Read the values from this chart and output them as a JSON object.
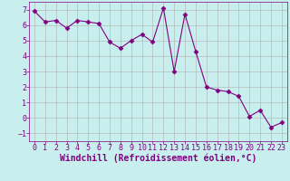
{
  "x": [
    0,
    1,
    2,
    3,
    4,
    5,
    6,
    7,
    8,
    9,
    10,
    11,
    12,
    13,
    14,
    15,
    16,
    17,
    18,
    19,
    20,
    21,
    22,
    23
  ],
  "y": [
    6.9,
    6.2,
    6.3,
    5.8,
    6.3,
    6.2,
    6.1,
    4.9,
    4.5,
    5.0,
    5.4,
    4.9,
    7.1,
    3.0,
    6.7,
    4.3,
    2.0,
    1.8,
    1.7,
    1.4,
    0.1,
    0.5,
    -0.6,
    -0.3
  ],
  "line_color": "#800080",
  "marker": "D",
  "marker_size": 2.5,
  "bg_color": "#c8eeee",
  "grid_color": "#b0b0b0",
  "xlabel": "Windchill (Refroidissement éolien,°C)",
  "xlabel_fontsize": 7,
  "tick_fontsize": 6,
  "ylim": [
    -1.5,
    7.5
  ],
  "xlim": [
    -0.5,
    23.5
  ],
  "yticks": [
    -1,
    0,
    1,
    2,
    3,
    4,
    5,
    6,
    7
  ],
  "xticks": [
    0,
    1,
    2,
    3,
    4,
    5,
    6,
    7,
    8,
    9,
    10,
    11,
    12,
    13,
    14,
    15,
    16,
    17,
    18,
    19,
    20,
    21,
    22,
    23
  ]
}
